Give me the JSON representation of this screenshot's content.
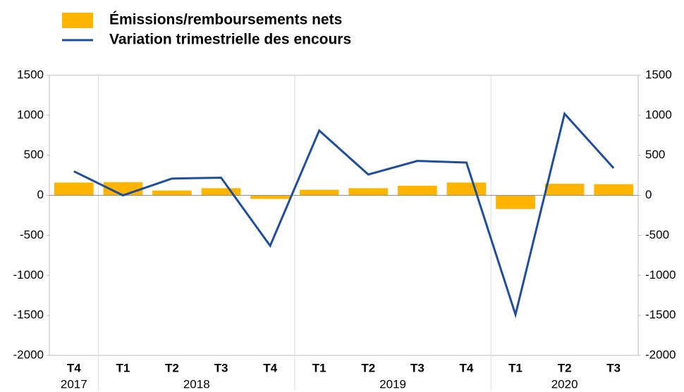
{
  "chart_data": {
    "type": "bar_line",
    "groups": [
      {
        "year": "2017",
        "categories": [
          "T4"
        ]
      },
      {
        "year": "2018",
        "categories": [
          "T1",
          "T2",
          "T3",
          "T4"
        ]
      },
      {
        "year": "2019",
        "categories": [
          "T1",
          "T2",
          "T3",
          "T4"
        ]
      },
      {
        "year": "2020",
        "categories": [
          "T1",
          "T2",
          "T3"
        ]
      }
    ],
    "series": [
      {
        "name": "Émissions/remboursements nets",
        "type": "bar",
        "color": "#ffb400",
        "values": [
          160,
          165,
          60,
          90,
          -45,
          70,
          90,
          120,
          160,
          -170,
          145,
          140
        ]
      },
      {
        "name": "Variation trimestrielle des encours",
        "type": "line",
        "color": "#1f4e9c",
        "axis": "y2",
        "values": [
          300,
          0,
          210,
          220,
          -630,
          810,
          260,
          430,
          410,
          -1490,
          1020,
          340
        ]
      }
    ],
    "ylim": [
      -2000,
      1500
    ],
    "yticks": [
      -2000,
      -1500,
      -1000,
      -500,
      0,
      500,
      1000,
      1500
    ],
    "y2lim": [
      -2000,
      1500
    ],
    "y2ticks": [
      -2000,
      -1500,
      -1000,
      -500,
      0,
      500,
      1000,
      1500
    ]
  }
}
